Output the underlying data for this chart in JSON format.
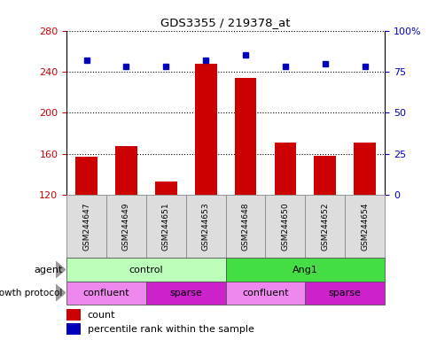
{
  "title": "GDS3355 / 219378_at",
  "samples": [
    "GSM244647",
    "GSM244649",
    "GSM244651",
    "GSM244653",
    "GSM244648",
    "GSM244650",
    "GSM244652",
    "GSM244654"
  ],
  "bar_values": [
    157,
    168,
    133,
    248,
    234,
    171,
    158,
    171
  ],
  "percentile_values": [
    82,
    78,
    78,
    82,
    85,
    78,
    80,
    78
  ],
  "y_min": 120,
  "y_max": 280,
  "y_ticks": [
    120,
    160,
    200,
    240,
    280
  ],
  "y_right_ticks": [
    0,
    25,
    50,
    75,
    100
  ],
  "bar_color": "#CC0000",
  "dot_color": "#0000BB",
  "bar_width": 0.55,
  "agent_control_color": "#BBFFBB",
  "agent_ang1_color": "#44DD44",
  "confluent_color": "#EE88EE",
  "sparse_color": "#CC22CC",
  "agent_groups": [
    {
      "label": "control",
      "start": 0,
      "end": 4,
      "color_key": "agent_control_color"
    },
    {
      "label": "Ang1",
      "start": 4,
      "end": 8,
      "color_key": "agent_ang1_color"
    }
  ],
  "protocol_groups": [
    {
      "label": "confluent",
      "start": 0,
      "end": 2,
      "color_key": "confluent_color"
    },
    {
      "label": "sparse",
      "start": 2,
      "end": 4,
      "color_key": "sparse_color"
    },
    {
      "label": "confluent",
      "start": 4,
      "end": 6,
      "color_key": "confluent_color"
    },
    {
      "label": "sparse",
      "start": 6,
      "end": 8,
      "color_key": "sparse_color"
    }
  ],
  "ylabel_left_color": "#CC0000",
  "ylabel_right_color": "#0000BB",
  "background_color": "#ffffff",
  "sample_box_color": "#DDDDDD",
  "legend_count_label": "count",
  "legend_pct_label": "percentile rank within the sample",
  "agent_label": "agent",
  "protocol_label": "growth protocol"
}
